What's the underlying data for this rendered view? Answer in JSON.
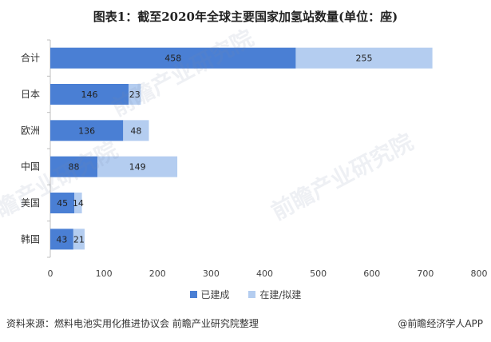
{
  "title": "图表1：截至2020年全球主要国家加氢站数量(单位：座)",
  "source": "资料来源：燃料电池实用化推进协议会 前瞻产业研究院整理",
  "brand": "@前瞻经济学人APP",
  "watermark": "前瞻产业研究院",
  "colors": {
    "built": "#4a7fd4",
    "planned": "#b4cdf0"
  },
  "chart_data": {
    "type": "bar",
    "orientation": "horizontal",
    "stacked": true,
    "categories": [
      "合计",
      "日本",
      "欧洲",
      "中国",
      "美国",
      "韩国"
    ],
    "series": [
      {
        "name": "已建成",
        "values": [
          458,
          146,
          136,
          88,
          45,
          43
        ]
      },
      {
        "name": "在建/拟建",
        "values": [
          255,
          23,
          48,
          149,
          14,
          21
        ]
      }
    ],
    "xlim": [
      0,
      800
    ],
    "xticks": [
      "0",
      "100",
      "200",
      "300",
      "400",
      "500",
      "600",
      "700",
      "800"
    ],
    "grid": false,
    "legend": "bottom"
  }
}
